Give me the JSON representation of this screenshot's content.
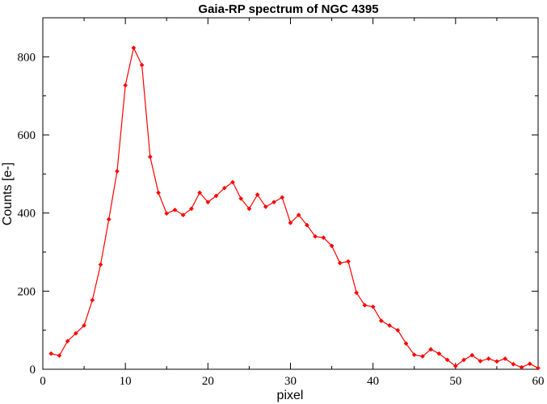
{
  "chart_data": {
    "type": "line",
    "title": "Gaia-RP spectrum of NGC 4395",
    "xlabel": "pixel",
    "ylabel": "Counts [e-]",
    "xlim": [
      0,
      60
    ],
    "ylim": [
      0,
      900
    ],
    "x_ticks": [
      0,
      10,
      20,
      30,
      40,
      50,
      60
    ],
    "y_ticks": [
      0,
      200,
      400,
      600,
      800
    ],
    "x_tick_labels": [
      "0",
      "10",
      "20",
      "30",
      "40",
      "50",
      "60"
    ],
    "y_tick_labels": [
      "0",
      "200",
      "400",
      "600",
      "800"
    ],
    "grid": false,
    "series": [
      {
        "color": "#ff0000",
        "marker": "diamond",
        "x": [
          1,
          2,
          3,
          4,
          5,
          6,
          7,
          8,
          9,
          10,
          11,
          12,
          13,
          14,
          15,
          16,
          17,
          18,
          19,
          20,
          21,
          22,
          23,
          24,
          25,
          26,
          27,
          28,
          29,
          30,
          31,
          32,
          33,
          34,
          35,
          36,
          37,
          38,
          39,
          40,
          41,
          42,
          43,
          44,
          45,
          46,
          47,
          48,
          49,
          50,
          51,
          52,
          53,
          54,
          55,
          56,
          57,
          58,
          59,
          60
        ],
        "y": [
          40,
          35,
          72,
          92,
          112,
          177,
          268,
          384,
          507,
          727,
          823,
          779,
          544,
          452,
          399,
          408,
          395,
          411,
          452,
          428,
          444,
          464,
          479,
          437,
          411,
          447,
          416,
          428,
          440,
          375,
          395,
          369,
          340,
          337,
          316,
          272,
          276,
          196,
          164,
          160,
          124,
          112,
          100,
          66,
          37,
          33,
          51,
          40,
          24,
          8,
          24,
          36,
          21,
          27,
          20,
          27,
          13,
          5,
          14,
          3
        ]
      }
    ]
  }
}
